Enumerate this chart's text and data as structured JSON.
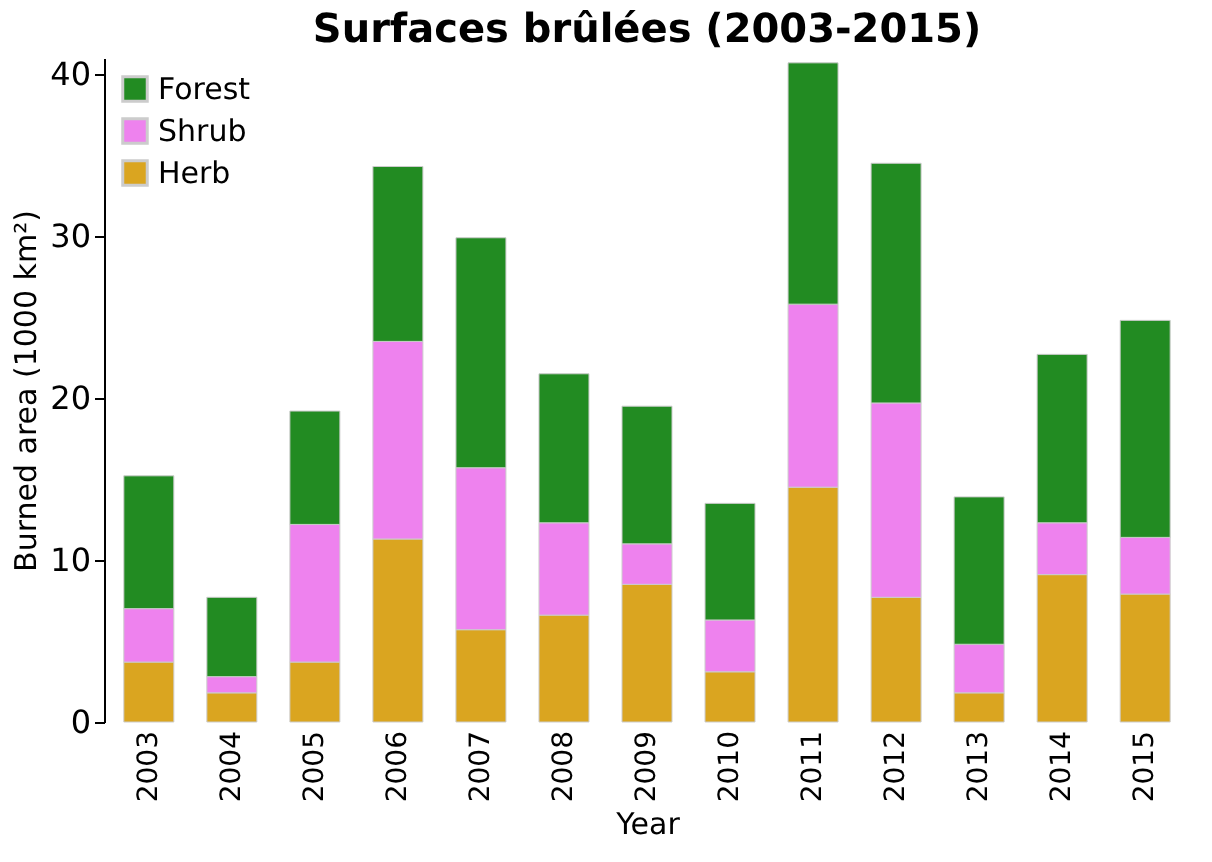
{
  "chart_data": {
    "type": "bar",
    "stacked": true,
    "title": "Surfaces brûlées (2003-2015)",
    "xlabel": "Year",
    "ylabel": "Burned area (1000 km²)",
    "categories": [
      "2003",
      "2004",
      "2005",
      "2006",
      "2007",
      "2008",
      "2009",
      "2010",
      "2011",
      "2012",
      "2013",
      "2014",
      "2015"
    ],
    "series": [
      {
        "name": "Herb",
        "color": "#daa520",
        "values": [
          3.7,
          1.8,
          3.7,
          11.3,
          5.7,
          6.6,
          8.5,
          3.1,
          14.5,
          7.7,
          1.8,
          9.1,
          7.9
        ]
      },
      {
        "name": "Shrub",
        "color": "#ee82ee",
        "values": [
          3.3,
          1.0,
          8.5,
          12.2,
          10.0,
          5.7,
          2.5,
          3.2,
          11.3,
          12.0,
          3.0,
          3.2,
          3.5
        ]
      },
      {
        "name": "Forest",
        "color": "#228b22",
        "values": [
          8.2,
          4.9,
          7.0,
          10.8,
          14.2,
          9.2,
          8.5,
          7.2,
          14.9,
          14.8,
          9.1,
          10.4,
          13.4
        ]
      }
    ],
    "ylim": [
      0,
      41
    ],
    "yticks": [
      0,
      10,
      20,
      30,
      40
    ],
    "grid": false,
    "legend": "top left"
  }
}
